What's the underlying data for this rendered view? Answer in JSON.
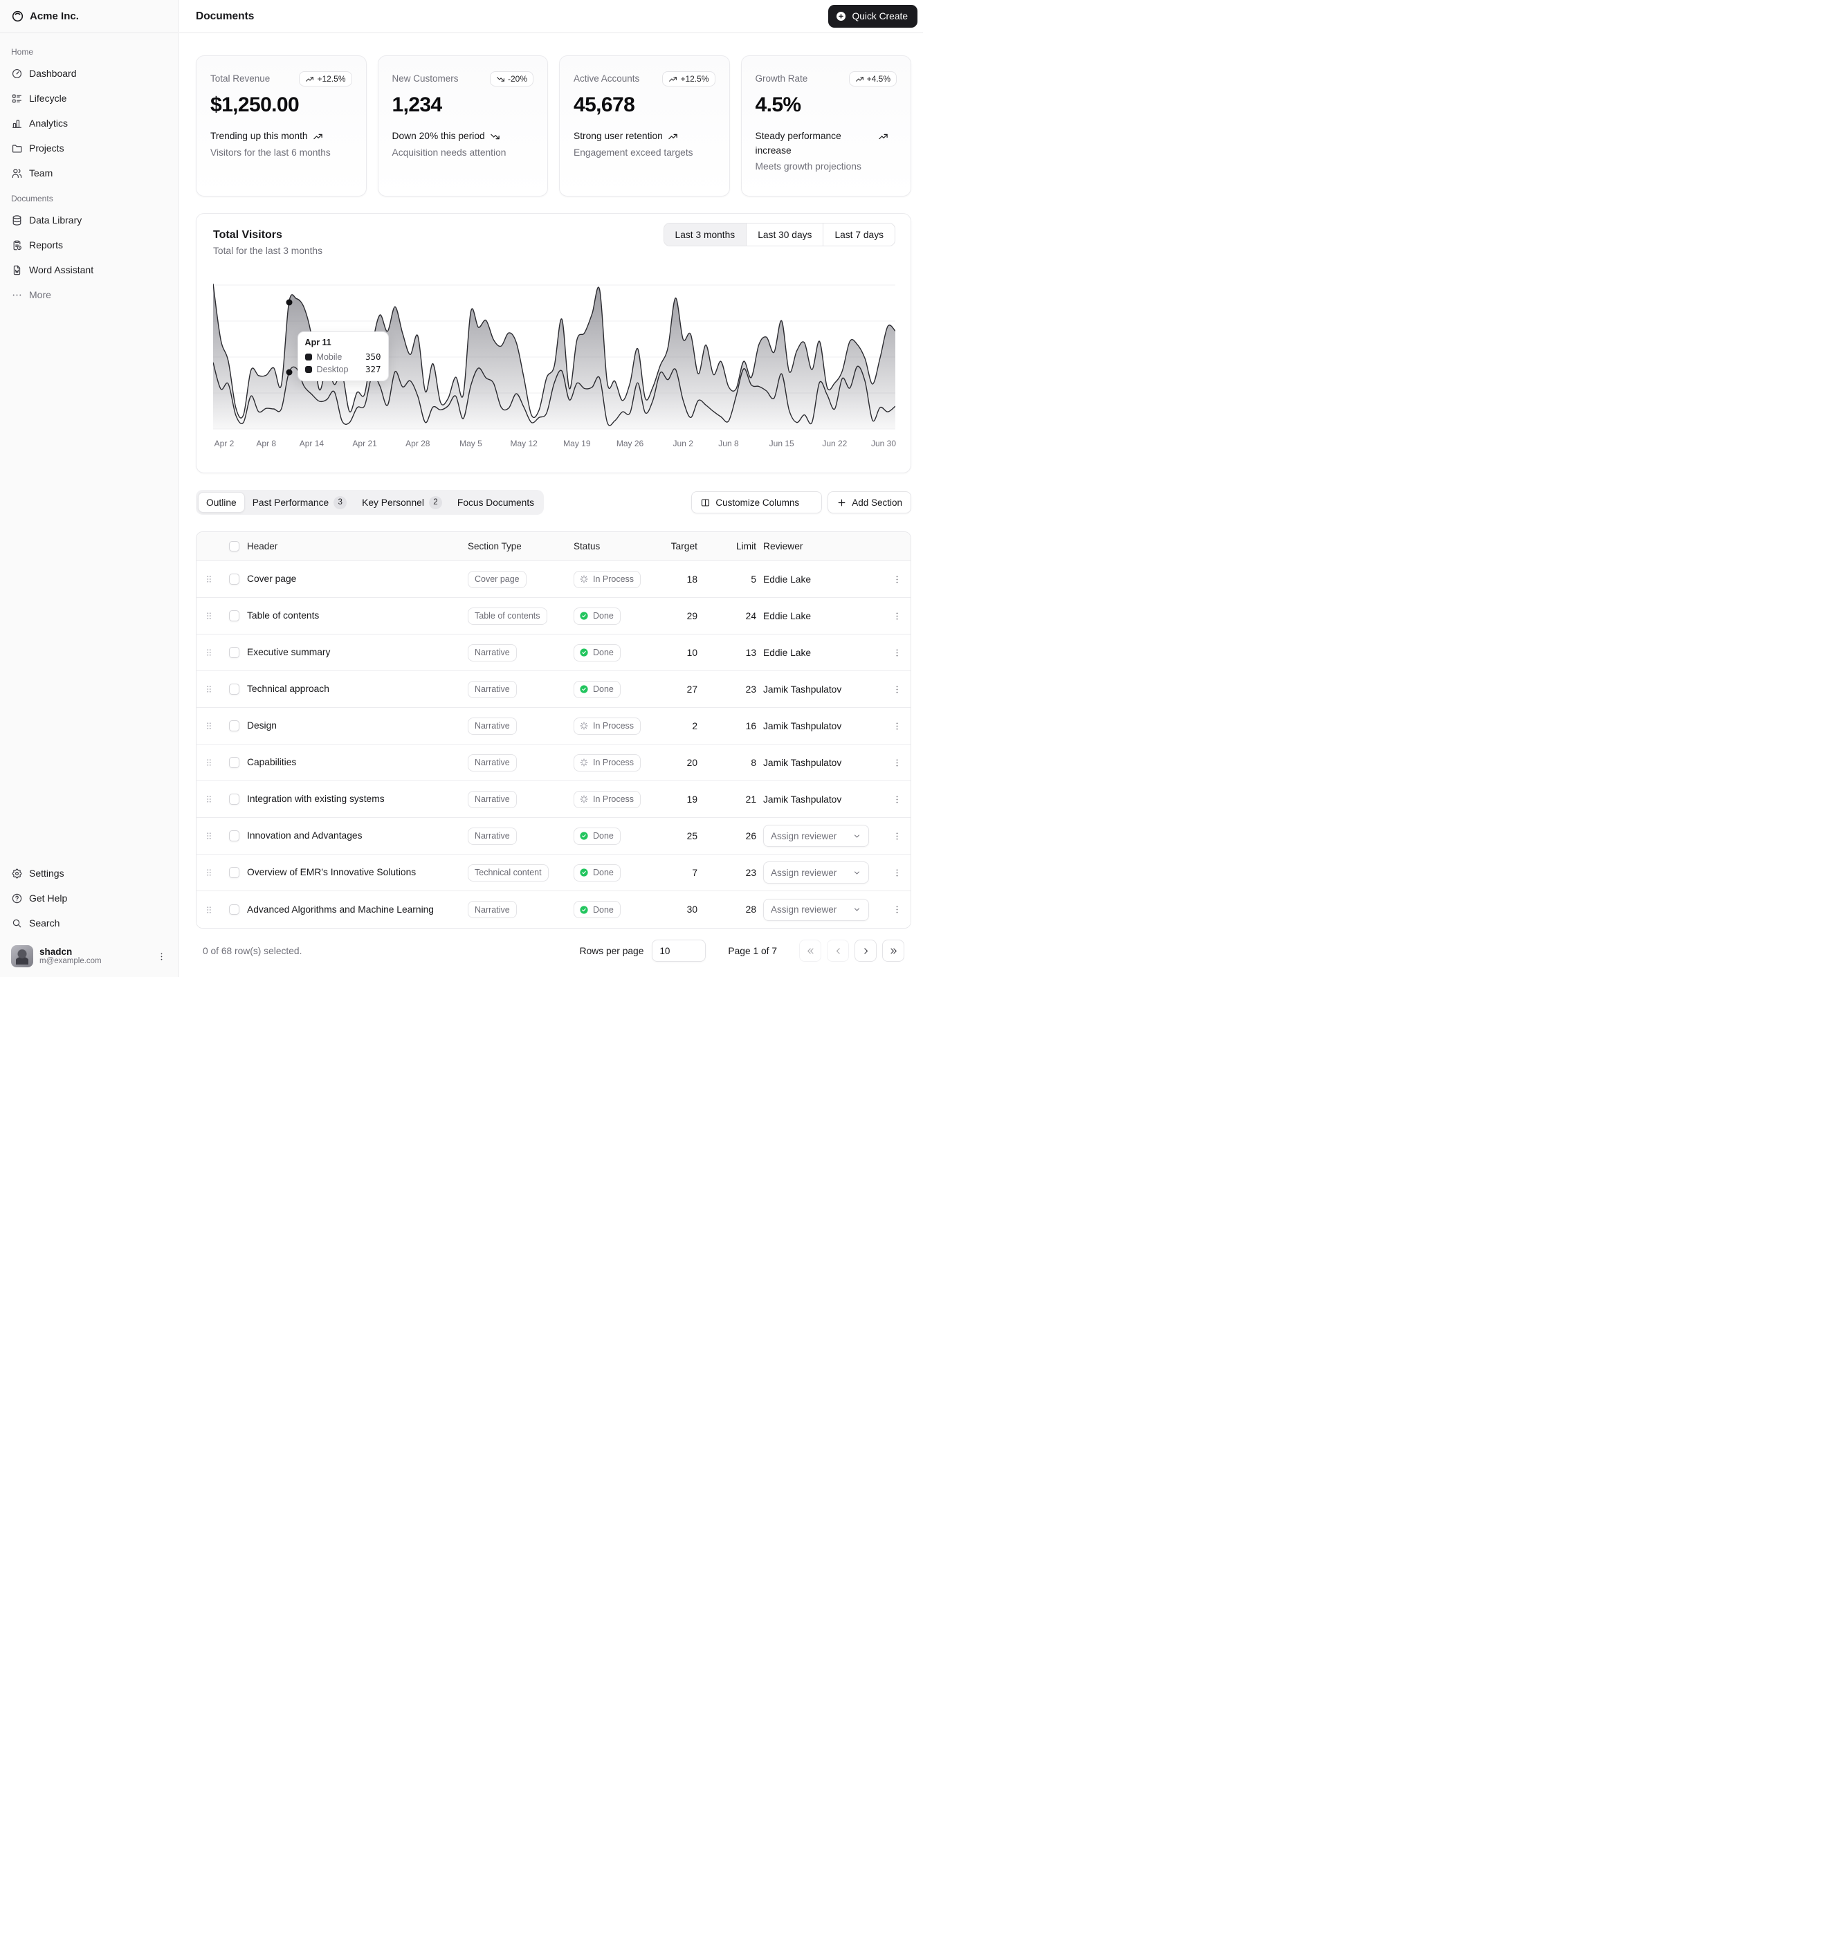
{
  "brand": {
    "name": "Acme Inc.",
    "logo_icon": "inner-shadow-logo-icon"
  },
  "header": {
    "title": "Documents",
    "quick_create_label": "Quick Create",
    "quick_create_icon": "circle-plus-icon"
  },
  "sidebar": {
    "groups": [
      {
        "label": "Home",
        "items": [
          {
            "label": "Dashboard",
            "icon": "gauge-icon"
          },
          {
            "label": "Lifecycle",
            "icon": "list-details-icon"
          },
          {
            "label": "Analytics",
            "icon": "chart-bar-icon"
          },
          {
            "label": "Projects",
            "icon": "folder-icon"
          },
          {
            "label": "Team",
            "icon": "users-icon"
          }
        ]
      },
      {
        "label": "Documents",
        "items": [
          {
            "label": "Data Library",
            "icon": "database-icon"
          },
          {
            "label": "Reports",
            "icon": "report-icon"
          },
          {
            "label": "Word Assistant",
            "icon": "file-word-icon"
          },
          {
            "label": "More",
            "icon": "dots-icon",
            "muted": true
          }
        ]
      }
    ],
    "secondary": [
      {
        "label": "Settings",
        "icon": "settings-icon"
      },
      {
        "label": "Get Help",
        "icon": "help-icon"
      },
      {
        "label": "Search",
        "icon": "search-icon"
      }
    ],
    "user": {
      "name": "shadcn",
      "email": "m@example.com"
    }
  },
  "cards": [
    {
      "title": "Total Revenue",
      "badge": "+12.5%",
      "trend": "up",
      "value": "$1,250.00",
      "footer_main": "Trending up this month",
      "footer_sub": "Visitors for the last 6 months"
    },
    {
      "title": "New Customers",
      "badge": "-20%",
      "trend": "down",
      "value": "1,234",
      "footer_main": "Down 20% this period",
      "footer_sub": "Acquisition needs attention"
    },
    {
      "title": "Active Accounts",
      "badge": "+12.5%",
      "trend": "up",
      "value": "45,678",
      "footer_main": "Strong user retention",
      "footer_sub": "Engagement exceed targets"
    },
    {
      "title": "Growth Rate",
      "badge": "+4.5%",
      "trend": "up",
      "value": "4.5%",
      "footer_main": "Steady performance increase",
      "footer_sub": "Meets growth projections"
    }
  ],
  "chart": {
    "title": "Total Visitors",
    "subtitle": "Total for the last 3 months",
    "ranges": [
      {
        "label": "Last 3 months",
        "active": true
      },
      {
        "label": "Last 30 days",
        "active": false
      },
      {
        "label": "Last 7 days",
        "active": false
      }
    ],
    "tooltip": {
      "date": "Apr 11",
      "rows": [
        {
          "label": "Mobile",
          "value": "350"
        },
        {
          "label": "Desktop",
          "value": "327"
        }
      ]
    }
  },
  "chart_data": {
    "type": "area",
    "stacked": true,
    "grid": "horizontal",
    "y_axis_visible": false,
    "series": [
      {
        "name": "Mobile"
      },
      {
        "name": "Desktop"
      }
    ],
    "x_range": [
      "Apr 1",
      "Jun 30"
    ],
    "x_ticks": [
      "Apr 2",
      "Apr 8",
      "Apr 14",
      "Apr 21",
      "Apr 28",
      "May 5",
      "May 12",
      "May 19",
      "May 26",
      "Jun 2",
      "Jun 8",
      "Jun 15",
      "Jun 22",
      "Jun 30"
    ],
    "highlighted_point": {
      "x": "Apr 11",
      "Mobile": 350,
      "Desktop": 327
    }
  },
  "tabs": {
    "items": [
      {
        "label": "Outline",
        "active": true
      },
      {
        "label": "Past Performance",
        "badge": "3"
      },
      {
        "label": "Key Personnel",
        "badge": "2"
      },
      {
        "label": "Focus Documents"
      }
    ]
  },
  "table_actions": {
    "customize_label": "Customize Columns",
    "customize_icon": "columns-icon",
    "add_label": "Add Section",
    "add_icon": "plus-icon"
  },
  "table": {
    "columns": [
      "Header",
      "Section Type",
      "Status",
      "Target",
      "Limit",
      "Reviewer"
    ],
    "status_colors": {
      "done_green": "#22c55e"
    },
    "rows": [
      {
        "header": "Cover page",
        "type": "Cover page",
        "status": "In Process",
        "target": "18",
        "limit": "5",
        "reviewer": "Eddie Lake",
        "assign": false
      },
      {
        "header": "Table of contents",
        "type": "Table of contents",
        "status": "Done",
        "target": "29",
        "limit": "24",
        "reviewer": "Eddie Lake",
        "assign": false
      },
      {
        "header": "Executive summary",
        "type": "Narrative",
        "status": "Done",
        "target": "10",
        "limit": "13",
        "reviewer": "Eddie Lake",
        "assign": false
      },
      {
        "header": "Technical approach",
        "type": "Narrative",
        "status": "Done",
        "target": "27",
        "limit": "23",
        "reviewer": "Jamik Tashpulatov",
        "assign": false
      },
      {
        "header": "Design",
        "type": "Narrative",
        "status": "In Process",
        "target": "2",
        "limit": "16",
        "reviewer": "Jamik Tashpulatov",
        "assign": false
      },
      {
        "header": "Capabilities",
        "type": "Narrative",
        "status": "In Process",
        "target": "20",
        "limit": "8",
        "reviewer": "Jamik Tashpulatov",
        "assign": false
      },
      {
        "header": "Integration with existing systems",
        "type": "Narrative",
        "status": "In Process",
        "target": "19",
        "limit": "21",
        "reviewer": "Jamik Tashpulatov",
        "assign": false
      },
      {
        "header": "Innovation and Advantages",
        "type": "Narrative",
        "status": "Done",
        "target": "25",
        "limit": "26",
        "reviewer": "Assign reviewer",
        "assign": true
      },
      {
        "header": "Overview of EMR's Innovative Solutions",
        "type": "Technical content",
        "status": "Done",
        "target": "7",
        "limit": "23",
        "reviewer": "Assign reviewer",
        "assign": true
      },
      {
        "header": "Advanced Algorithms and Machine Learning",
        "type": "Narrative",
        "status": "Done",
        "target": "30",
        "limit": "28",
        "reviewer": "Assign reviewer",
        "assign": true
      }
    ]
  },
  "pagination": {
    "selected_text": "0 of 68 row(s) selected.",
    "rows_per_page_label": "Rows per page",
    "rows_per_page_value": "10",
    "page_text": "Page 1 of 7",
    "buttons": [
      {
        "icon": "chevrons-left-icon",
        "disabled": true
      },
      {
        "icon": "chevron-left-icon",
        "disabled": true
      },
      {
        "icon": "chevron-right-icon",
        "disabled": false
      },
      {
        "icon": "chevrons-right-icon",
        "disabled": false
      }
    ]
  }
}
